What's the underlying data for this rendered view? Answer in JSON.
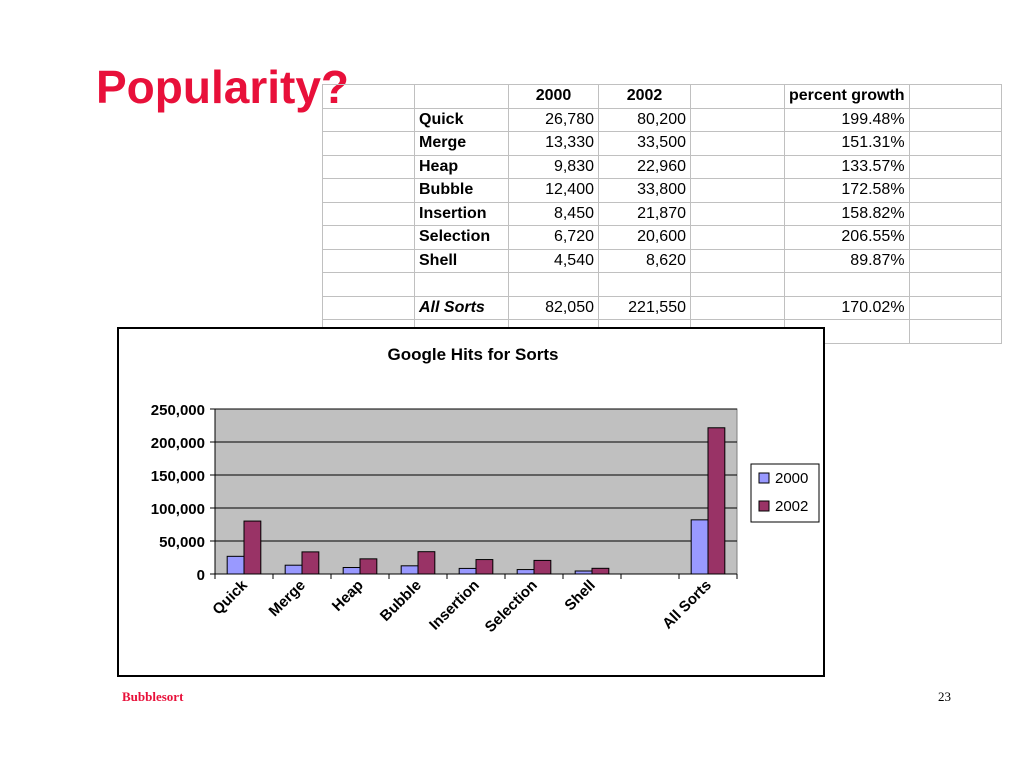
{
  "slide": {
    "title": "Popularity?",
    "footer_left": "Bubblesort",
    "page_number": "23"
  },
  "table": {
    "headers": [
      "",
      "",
      "2000",
      "2002",
      "",
      "percent growth",
      ""
    ],
    "rows": [
      [
        "",
        "Quick",
        "26,780",
        "80,200",
        "",
        "199.48%",
        ""
      ],
      [
        "",
        "Merge",
        "13,330",
        "33,500",
        "",
        "151.31%",
        ""
      ],
      [
        "",
        "Heap",
        "9,830",
        "22,960",
        "",
        "133.57%",
        ""
      ],
      [
        "",
        "Bubble",
        "12,400",
        "33,800",
        "",
        "172.58%",
        ""
      ],
      [
        "",
        "Insertion",
        "8,450",
        "21,870",
        "",
        "158.82%",
        ""
      ],
      [
        "",
        "Selection",
        "6,720",
        "20,600",
        "",
        "206.55%",
        ""
      ],
      [
        "",
        "Shell",
        "4,540",
        "8,620",
        "",
        "89.87%",
        ""
      ],
      [
        "",
        "",
        "",
        "",
        "",
        "",
        ""
      ],
      [
        "",
        "All Sorts",
        "82,050",
        "221,550",
        "",
        "170.02%",
        ""
      ],
      [
        "",
        "",
        "",
        "",
        "",
        "",
        ""
      ]
    ]
  },
  "chart_data": {
    "type": "bar",
    "title": "Google Hits for Sorts",
    "categories": [
      "Quick",
      "Merge",
      "Heap",
      "Bubble",
      "Insertion",
      "Selection",
      "Shell",
      "",
      "All Sorts"
    ],
    "series": [
      {
        "name": "2000",
        "values": [
          26780,
          13330,
          9830,
          12400,
          8450,
          6720,
          4540,
          null,
          82050
        ],
        "color": "#9999ff"
      },
      {
        "name": "2002",
        "values": [
          80200,
          33500,
          22960,
          33800,
          21870,
          20600,
          8620,
          null,
          221550
        ],
        "color": "#993366"
      }
    ],
    "ylim": [
      0,
      250000
    ],
    "yticks": [
      0,
      50000,
      100000,
      150000,
      200000,
      250000
    ],
    "ytick_labels": [
      "0",
      "50,000",
      "100,000",
      "150,000",
      "200,000",
      "250,000"
    ],
    "plot_background": "#c0c0c0",
    "grid": true,
    "legend": "right"
  }
}
